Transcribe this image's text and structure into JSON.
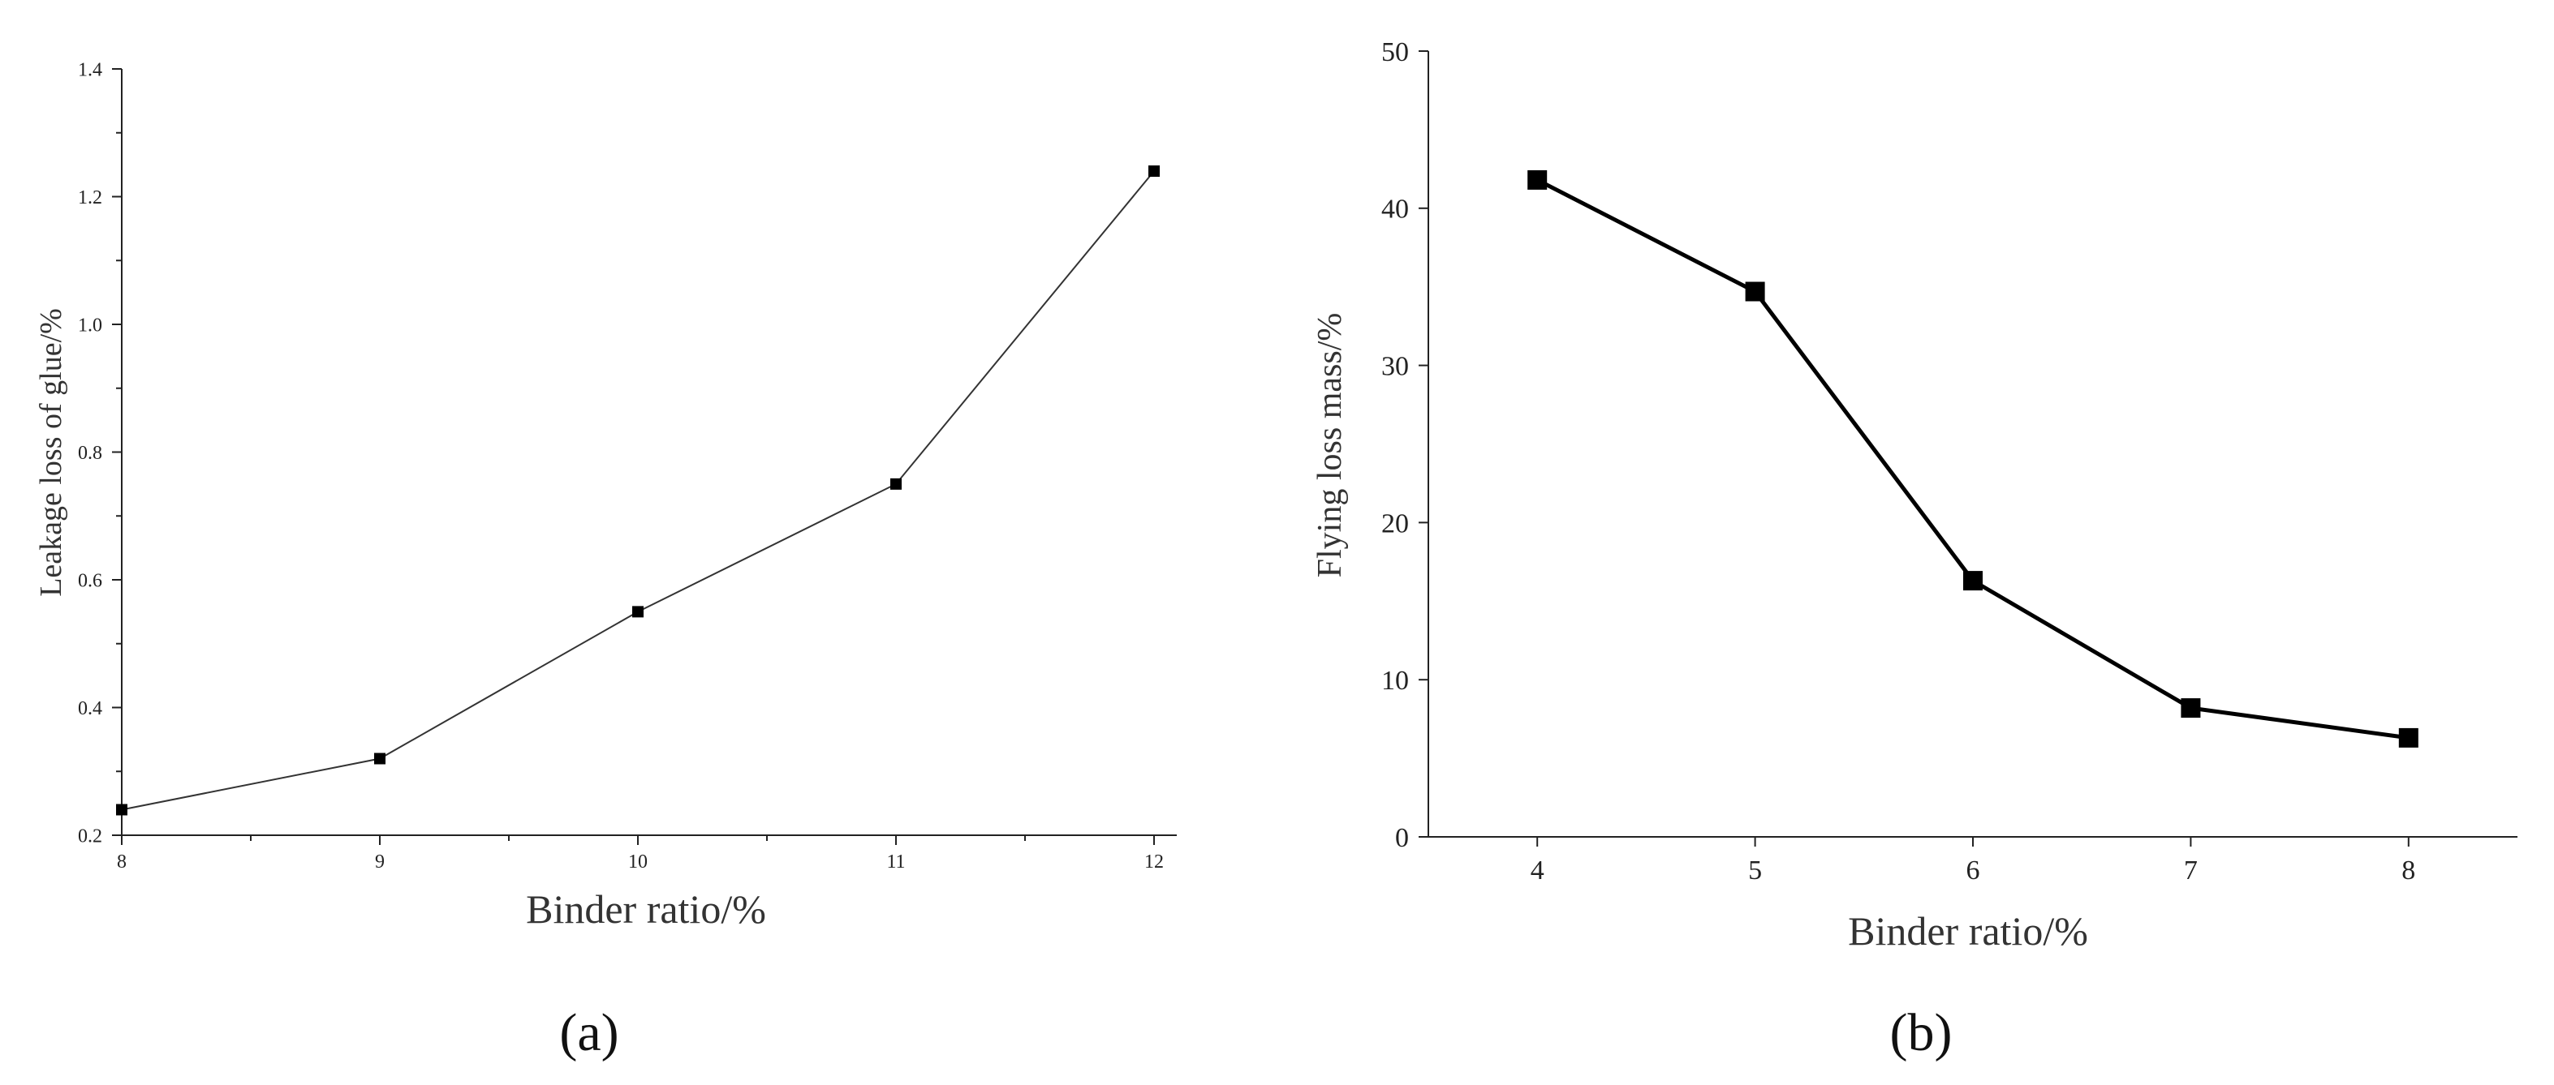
{
  "chart_data": [
    {
      "type": "line",
      "panel_label": "(a)",
      "xlabel": "Binder ratio/%",
      "ylabel": "Leakage loss of glue/%",
      "xlim": [
        8,
        12
      ],
      "ylim": [
        0.2,
        1.4
      ],
      "x_ticks": [
        8,
        9,
        10,
        11,
        12
      ],
      "x_tick_labels": [
        "8",
        "9",
        "10",
        "11",
        "12"
      ],
      "y_ticks": [
        0.2,
        0.4,
        0.6,
        0.8,
        1.0,
        1.2,
        1.4
      ],
      "y_tick_labels": [
        "0.2",
        "0.4",
        "0.6",
        "0.8",
        "1.0",
        "1.2",
        "1.4"
      ],
      "x_minor_ticks": [
        8.5,
        9.5,
        10.5,
        11.5
      ],
      "y_minor_ticks": [
        0.3,
        0.5,
        0.7,
        0.9,
        1.1,
        1.3
      ],
      "grid": false,
      "series": [
        {
          "x": [
            8,
            9,
            10,
            11,
            12
          ],
          "values": [
            0.24,
            0.32,
            0.55,
            0.75,
            1.24
          ],
          "marker": "square",
          "color": "#333333"
        }
      ]
    },
    {
      "type": "line",
      "panel_label": "(b)",
      "xlabel": "Binder ratio/%",
      "ylabel": "Flying loss mass/%",
      "xlim": [
        3.5,
        8.5
      ],
      "ylim": [
        0,
        50
      ],
      "x_ticks": [
        4,
        5,
        6,
        7,
        8
      ],
      "x_tick_labels": [
        "4",
        "5",
        "6",
        "7",
        "8"
      ],
      "y_ticks": [
        0,
        10,
        20,
        30,
        40,
        50
      ],
      "y_tick_labels": [
        "0",
        "10",
        "20",
        "30",
        "40",
        "50"
      ],
      "grid": false,
      "series": [
        {
          "x": [
            4,
            5,
            6,
            7,
            8
          ],
          "values": [
            41.8,
            34.7,
            16.3,
            8.2,
            6.3
          ],
          "marker": "square",
          "color": "#000000"
        }
      ]
    }
  ]
}
